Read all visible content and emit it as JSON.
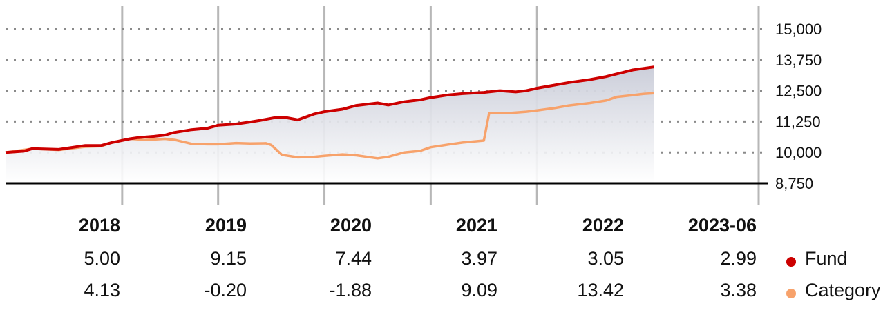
{
  "colors": {
    "fund": "#cc0000",
    "category": "#f7a26b",
    "grid": "#b7b7b7",
    "axis": "#000000",
    "fill_top": "#c9ccd8"
  },
  "legend": {
    "fund": "Fund",
    "category": "Category"
  },
  "chart_data": {
    "type": "line",
    "title": "",
    "xlabel": "",
    "ylabel": "",
    "x_range": [
      2017.0,
      2023.5
    ],
    "ylim": [
      8750,
      15000
    ],
    "y_ticks": [
      "15,000",
      "13,750",
      "12,500",
      "11,250",
      "10,000",
      "8,750"
    ],
    "y_tick_values": [
      15000,
      13750,
      12500,
      11250,
      10000,
      8750
    ],
    "x_gridlines": [
      2018,
      2019,
      2020,
      2021,
      2022,
      2023
    ],
    "grid": true,
    "area_fill": true,
    "series": [
      {
        "name": "Fund",
        "points": [
          [
            2017.0,
            10000
          ],
          [
            2017.17,
            10050
          ],
          [
            2017.25,
            10150
          ],
          [
            2017.5,
            10120
          ],
          [
            2017.75,
            10280
          ],
          [
            2017.9,
            10280
          ],
          [
            2018.0,
            10400
          ],
          [
            2018.17,
            10550
          ],
          [
            2018.25,
            10600
          ],
          [
            2018.4,
            10650
          ],
          [
            2018.5,
            10700
          ],
          [
            2018.58,
            10800
          ],
          [
            2018.75,
            10920
          ],
          [
            2018.9,
            10980
          ],
          [
            2019.0,
            11100
          ],
          [
            2019.17,
            11150
          ],
          [
            2019.3,
            11230
          ],
          [
            2019.4,
            11300
          ],
          [
            2019.55,
            11420
          ],
          [
            2019.65,
            11400
          ],
          [
            2019.75,
            11320
          ],
          [
            2019.9,
            11550
          ],
          [
            2020.0,
            11650
          ],
          [
            2020.17,
            11750
          ],
          [
            2020.3,
            11900
          ],
          [
            2020.5,
            12000
          ],
          [
            2020.6,
            11920
          ],
          [
            2020.75,
            12050
          ],
          [
            2020.9,
            12130
          ],
          [
            2021.0,
            12220
          ],
          [
            2021.17,
            12330
          ],
          [
            2021.3,
            12380
          ],
          [
            2021.5,
            12430
          ],
          [
            2021.65,
            12500
          ],
          [
            2021.8,
            12450
          ],
          [
            2021.9,
            12500
          ],
          [
            2022.0,
            12600
          ],
          [
            2022.17,
            12730
          ],
          [
            2022.3,
            12830
          ],
          [
            2022.5,
            12950
          ],
          [
            2022.65,
            13070
          ],
          [
            2022.8,
            13230
          ],
          [
            2022.9,
            13340
          ],
          [
            2023.0,
            13400
          ],
          [
            2023.1,
            13460
          ]
        ]
      },
      {
        "name": "Category",
        "points": [
          [
            2017.0,
            10000
          ],
          [
            2017.25,
            10150
          ],
          [
            2017.5,
            10100
          ],
          [
            2017.75,
            10230
          ],
          [
            2017.9,
            10250
          ],
          [
            2018.0,
            10400
          ],
          [
            2018.17,
            10550
          ],
          [
            2018.25,
            10530
          ],
          [
            2018.3,
            10500
          ],
          [
            2018.5,
            10550
          ],
          [
            2018.6,
            10500
          ],
          [
            2018.75,
            10350
          ],
          [
            2018.9,
            10330
          ],
          [
            2019.0,
            10330
          ],
          [
            2019.17,
            10380
          ],
          [
            2019.3,
            10360
          ],
          [
            2019.45,
            10370
          ],
          [
            2019.5,
            10300
          ],
          [
            2019.6,
            9900
          ],
          [
            2019.75,
            9800
          ],
          [
            2019.9,
            9820
          ],
          [
            2020.0,
            9860
          ],
          [
            2020.17,
            9920
          ],
          [
            2020.3,
            9880
          ],
          [
            2020.5,
            9760
          ],
          [
            2020.6,
            9820
          ],
          [
            2020.75,
            10000
          ],
          [
            2020.9,
            10060
          ],
          [
            2021.0,
            10210
          ],
          [
            2021.17,
            10320
          ],
          [
            2021.3,
            10400
          ],
          [
            2021.5,
            10480
          ],
          [
            2021.55,
            11600
          ],
          [
            2021.75,
            11600
          ],
          [
            2021.9,
            11650
          ],
          [
            2022.0,
            11700
          ],
          [
            2022.17,
            11800
          ],
          [
            2022.3,
            11900
          ],
          [
            2022.5,
            12000
          ],
          [
            2022.65,
            12100
          ],
          [
            2022.75,
            12250
          ],
          [
            2022.9,
            12320
          ],
          [
            2023.0,
            12370
          ],
          [
            2023.1,
            12400
          ]
        ]
      }
    ]
  },
  "table": {
    "years": [
      "2018",
      "2019",
      "2020",
      "2021",
      "2022",
      "2023-06"
    ],
    "fund": [
      "5.00",
      "9.15",
      "7.44",
      "3.97",
      "3.05",
      "2.99"
    ],
    "category": [
      "4.13",
      "-0.20",
      "-1.88",
      "9.09",
      "13.42",
      "3.38"
    ]
  }
}
